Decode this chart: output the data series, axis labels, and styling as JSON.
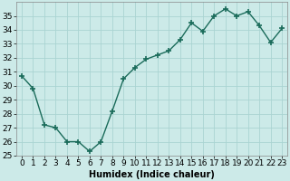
{
  "x": [
    0,
    1,
    2,
    3,
    4,
    5,
    6,
    7,
    8,
    9,
    10,
    11,
    12,
    13,
    14,
    15,
    16,
    17,
    18,
    19,
    20,
    21,
    22,
    23
  ],
  "y": [
    30.7,
    29.8,
    27.2,
    27.0,
    26.0,
    26.0,
    25.3,
    26.0,
    28.2,
    30.5,
    31.3,
    31.9,
    32.2,
    32.5,
    33.3,
    34.5,
    33.9,
    35.0,
    35.5,
    35.0,
    35.3,
    34.3,
    33.1,
    34.1
  ],
  "line_color": "#1a6b5a",
  "marker": "+",
  "marker_size": 5,
  "bg_color": "#cceae8",
  "grid_color": "#aad4d2",
  "xlabel": "Humidex (Indice chaleur)",
  "xlim": [
    -0.5,
    23.5
  ],
  "ylim": [
    25,
    36
  ],
  "yticks": [
    25,
    26,
    27,
    28,
    29,
    30,
    31,
    32,
    33,
    34,
    35
  ],
  "xtick_labels": [
    "0",
    "1",
    "2",
    "3",
    "4",
    "5",
    "6",
    "7",
    "8",
    "9",
    "10",
    "11",
    "12",
    "13",
    "14",
    "15",
    "16",
    "17",
    "18",
    "19",
    "20",
    "21",
    "22",
    "23"
  ],
  "xlabel_fontsize": 7,
  "tick_fontsize": 6.5,
  "linewidth": 1.0
}
